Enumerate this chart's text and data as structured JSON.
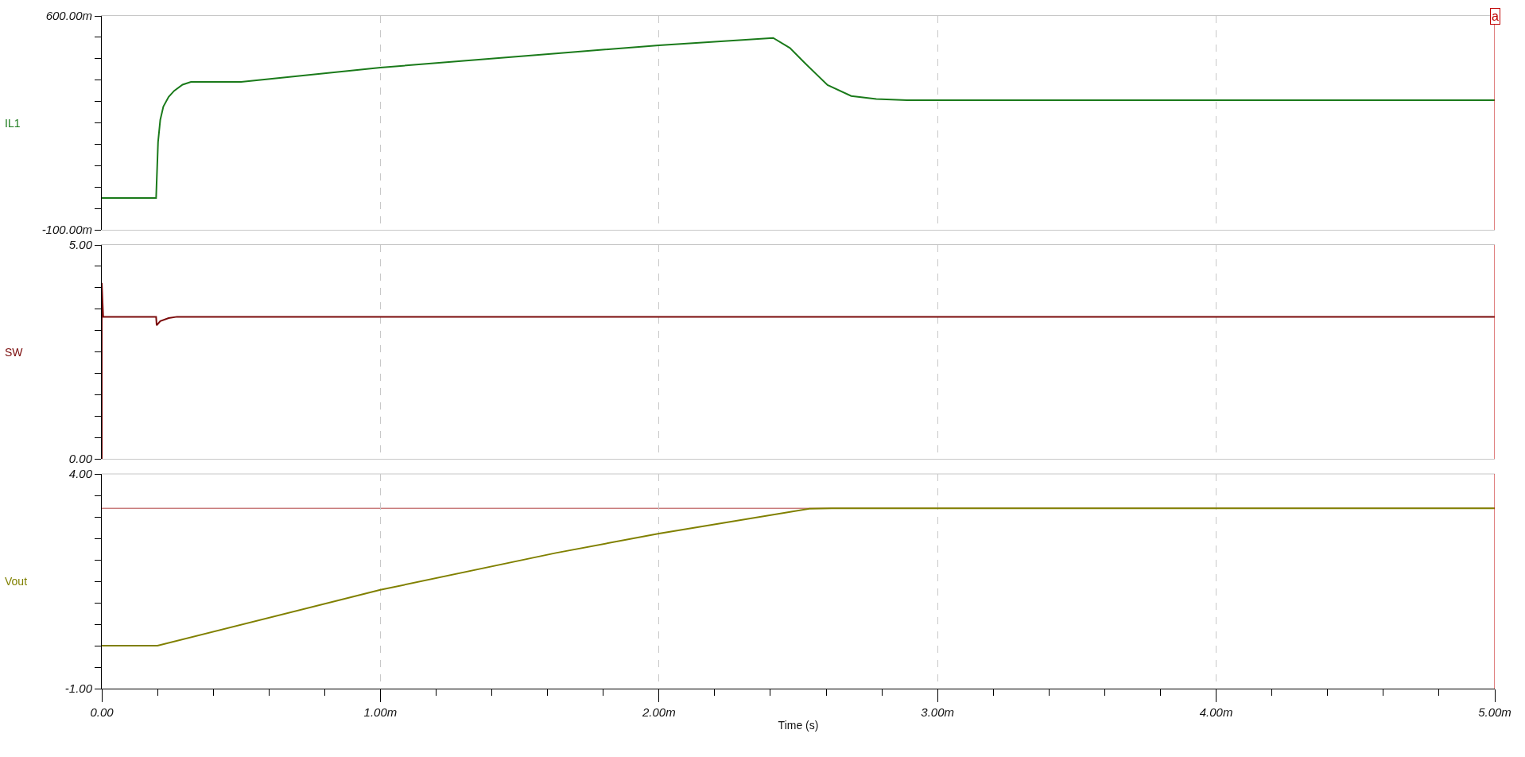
{
  "chart_data": [
    {
      "type": "line",
      "ylabel": "IL1",
      "xlim": [
        0,
        5
      ],
      "ylim": [
        -100,
        600
      ],
      "tick_labels": "y",
      "grid": "x",
      "xticks": [
        0,
        1,
        2,
        3,
        4,
        5
      ],
      "yticks": [
        {
          "value": -100,
          "label": "-100.00m"
        },
        {
          "value": -30,
          "label": null
        },
        {
          "value": 40,
          "label": null
        },
        {
          "value": 110,
          "label": null
        },
        {
          "value": 180,
          "label": null
        },
        {
          "value": 250,
          "label": null
        },
        {
          "value": 320,
          "label": null
        },
        {
          "value": 390,
          "label": null
        },
        {
          "value": 460,
          "label": null
        },
        {
          "value": 530,
          "label": null
        },
        {
          "value": 600,
          "label": "600.00m"
        }
      ],
      "ref_lines": [
        {
          "axis": "x",
          "value": 5,
          "label": "a",
          "color": "#c00000"
        }
      ],
      "series": [
        {
          "color": "#1a7a1a",
          "x": [
            0,
            0.195,
            0.202,
            0.21,
            0.221,
            0.24,
            0.26,
            0.29,
            0.32,
            0.5,
            1,
            1.63,
            2,
            2.41,
            2.47,
            2.52,
            2.605,
            2.69,
            2.78,
            2.89,
            5
          ],
          "values": [
            4,
            4,
            187,
            260,
            303,
            335,
            355,
            375,
            384,
            384,
            431,
            477,
            504,
            528,
            495,
            449,
            374,
            338,
            328,
            324,
            324
          ]
        }
      ]
    },
    {
      "type": "line",
      "ylabel": "SW",
      "xlim": [
        0,
        5
      ],
      "ylim": [
        0,
        5
      ],
      "tick_labels": "y",
      "grid": "x",
      "xticks": [
        0,
        1,
        2,
        3,
        4,
        5
      ],
      "yticks": [
        {
          "value": 0,
          "label": "0.00"
        },
        {
          "value": 0.5,
          "label": null
        },
        {
          "value": 1,
          "label": null
        },
        {
          "value": 1.5,
          "label": null
        },
        {
          "value": 2,
          "label": null
        },
        {
          "value": 2.5,
          "label": null
        },
        {
          "value": 3,
          "label": null
        },
        {
          "value": 3.5,
          "label": null
        },
        {
          "value": 4,
          "label": null
        },
        {
          "value": 4.5,
          "label": null
        },
        {
          "value": 5,
          "label": "5.00"
        }
      ],
      "ref_lines": [
        {
          "axis": "x",
          "value": 5,
          "color": "#c00000"
        }
      ],
      "series": [
        {
          "color": "#7a0a0a",
          "x": [
            0,
            0,
            0.005,
            0.195,
            0.197,
            0.21,
            0.24,
            0.27,
            5
          ],
          "values": [
            0,
            4.11,
            3.32,
            3.32,
            3.12,
            3.22,
            3.29,
            3.32,
            3.32
          ]
        }
      ]
    },
    {
      "type": "line",
      "ylabel": "Vout",
      "xlabel": "Time (s)",
      "xlim": [
        0,
        5
      ],
      "ylim": [
        -1,
        4
      ],
      "grid": "x",
      "xticks": [
        {
          "value": 0,
          "label": "0.00"
        },
        {
          "value": 1,
          "label": "1.00m"
        },
        {
          "value": 2,
          "label": "2.00m"
        },
        {
          "value": 3,
          "label": "3.00m"
        },
        {
          "value": 4,
          "label": "4.00m"
        },
        {
          "value": 5,
          "label": "5.00m"
        }
      ],
      "yticks": [
        {
          "value": -1,
          "label": "-1.00"
        },
        {
          "value": -0.5,
          "label": null
        },
        {
          "value": 0,
          "label": null
        },
        {
          "value": 0.5,
          "label": null
        },
        {
          "value": 1,
          "label": null
        },
        {
          "value": 1.5,
          "label": null
        },
        {
          "value": 2,
          "label": null
        },
        {
          "value": 2.5,
          "label": null
        },
        {
          "value": 3,
          "label": null
        },
        {
          "value": 3.5,
          "label": null
        },
        {
          "value": 4,
          "label": "4.00"
        }
      ],
      "ref_lines": [
        {
          "axis": "y",
          "value": 3.2,
          "color": "#b04040"
        },
        {
          "axis": "x",
          "value": 5,
          "color": "#c00000"
        }
      ],
      "series": [
        {
          "color": "#808000",
          "x": [
            0,
            0.2,
            1,
            1.63,
            2,
            2.54,
            2.62,
            5
          ],
          "values": [
            0,
            0,
            1.3,
            2.16,
            2.61,
            3.19,
            3.2,
            3.2
          ]
        }
      ]
    }
  ]
}
